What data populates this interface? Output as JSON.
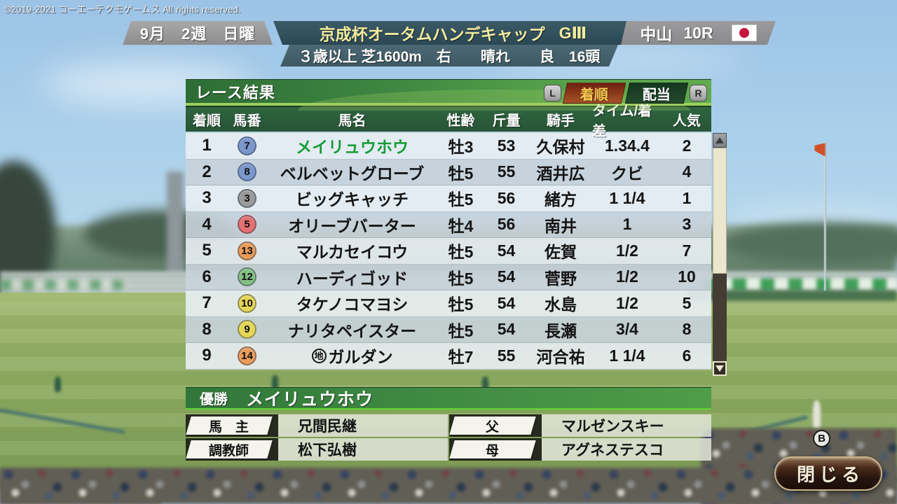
{
  "copyright": "©2019-2021 コーエーテクモゲームス All rights reserved.",
  "header": {
    "date": "9月　2週　日曜",
    "race_name": "京成杯オータムハンデキャップ",
    "grade": "GⅢ",
    "venue": "中山",
    "race_no": "10R",
    "flag_icon": "japan-flag",
    "conditions": "３歳以上 芝1600m　右　　晴れ　　良　16頭"
  },
  "panel": {
    "title": "レース結果",
    "left_bumper": "L",
    "right_bumper": "R",
    "tabs": [
      {
        "label": "着順",
        "active": true
      },
      {
        "label": "配当",
        "active": false
      }
    ],
    "columns": [
      "着順",
      "馬番",
      "馬名",
      "性齢",
      "斤量",
      "騎手",
      "タイム/着差",
      "人気"
    ],
    "rows": [
      {
        "pos": "1",
        "num": "7",
        "frame": "blue",
        "name": "メイリュウホウ",
        "winner": true,
        "sex_age": "牡3",
        "weight": "53",
        "jockey": "久保村",
        "time": "1.34.4",
        "pop": "2"
      },
      {
        "pos": "2",
        "num": "8",
        "frame": "blue",
        "name": "ベルベットグローブ",
        "winner": false,
        "sex_age": "牡5",
        "weight": "55",
        "jockey": "酒井広",
        "time": "クビ",
        "pop": "4"
      },
      {
        "pos": "3",
        "num": "3",
        "frame": "black",
        "name": "ビッグキャッチ",
        "winner": false,
        "sex_age": "牡5",
        "weight": "56",
        "jockey": "緒方",
        "time": "1 1/4",
        "pop": "1"
      },
      {
        "pos": "4",
        "num": "5",
        "frame": "red",
        "name": "オリーブバーター",
        "winner": false,
        "sex_age": "牡4",
        "weight": "56",
        "jockey": "南井",
        "time": "1",
        "pop": "3"
      },
      {
        "pos": "5",
        "num": "13",
        "frame": "orange",
        "name": "マルカセイコウ",
        "winner": false,
        "sex_age": "牡5",
        "weight": "54",
        "jockey": "佐賀",
        "time": "1/2",
        "pop": "7"
      },
      {
        "pos": "6",
        "num": "12",
        "frame": "green",
        "name": "ハーディゴッド",
        "winner": false,
        "sex_age": "牡5",
        "weight": "54",
        "jockey": "菅野",
        "time": "1/2",
        "pop": "10"
      },
      {
        "pos": "7",
        "num": "10",
        "frame": "yellow",
        "name": "タケノコマヨシ",
        "winner": false,
        "sex_age": "牡5",
        "weight": "54",
        "jockey": "水島",
        "time": "1/2",
        "pop": "5"
      },
      {
        "pos": "8",
        "num": "9",
        "frame": "yellow",
        "name": "ナリタペイスター",
        "winner": false,
        "sex_age": "牡5",
        "weight": "54",
        "jockey": "長瀬",
        "time": "3/4",
        "pop": "8"
      },
      {
        "pos": "9",
        "num": "14",
        "frame": "orange",
        "name": "ガルダン",
        "prefix": "地",
        "winner": false,
        "sex_age": "牡7",
        "weight": "55",
        "jockey": "河合祐",
        "time": "1 1/4",
        "pop": "6"
      }
    ]
  },
  "winner": {
    "label": "優勝",
    "name": "メイリュウホウ",
    "details": [
      {
        "label": "馬　主",
        "value": "兄間民継"
      },
      {
        "label": "父",
        "value": "マルゼンスキー"
      },
      {
        "label": "調教師",
        "value": "松下弘樹"
      },
      {
        "label": "母",
        "value": "アグネステスコ"
      }
    ]
  },
  "close_button": {
    "label": "閉じる",
    "gamepad_key": "B"
  },
  "colors": {
    "frames": {
      "blue": "#7b97cc",
      "black": "#9a9a9a",
      "red": "#e57070",
      "orange": "#eb9c58",
      "green": "#84c084",
      "yellow": "#e6d655"
    },
    "winner_name_text": "#169c38",
    "tab_active_bg": "#8f3c1c",
    "tab_active_text": "#f5c94e",
    "panel_green": "#3c8440",
    "grade_text": "#f2eb9e",
    "close_border": "#cbb286"
  }
}
